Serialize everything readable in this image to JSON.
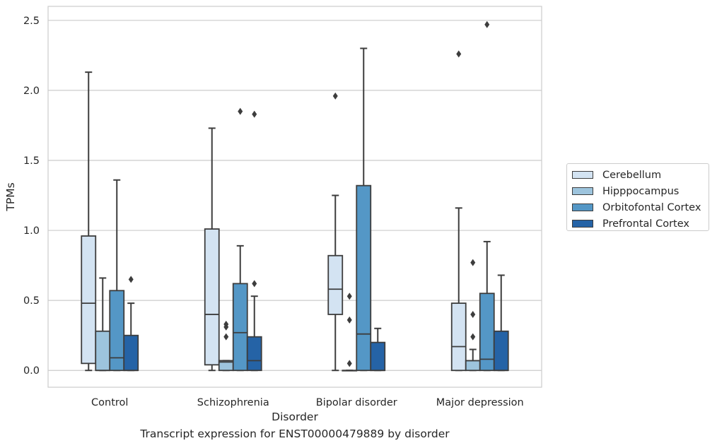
{
  "footer_text": "Transcript expression for ENST00000479889 by disorder",
  "chart_data": {
    "type": "box",
    "title": "",
    "xlabel": "Disorder",
    "ylabel": "TPMs",
    "categories": [
      "Control",
      "Schizophrenia",
      "Bipolar disorder",
      "Major depression"
    ],
    "ylim": [
      -0.12,
      2.6
    ],
    "yticks": [
      0.0,
      0.5,
      1.0,
      1.5,
      2.0,
      2.5
    ],
    "ytick_labels": [
      "0.0",
      "0.5",
      "1.0",
      "1.5",
      "2.0",
      "2.5"
    ],
    "grid": true,
    "legend_position": "right",
    "series": [
      {
        "name": "Cerebellum",
        "color": "#d3e3f2",
        "boxes": [
          {
            "min": 0.0,
            "q1": 0.05,
            "median": 0.48,
            "q3": 0.96,
            "max": 2.13,
            "outliers": []
          },
          {
            "min": 0.0,
            "q1": 0.04,
            "median": 0.4,
            "q3": 1.01,
            "max": 1.73,
            "outliers": []
          },
          {
            "min": 0.0,
            "q1": 0.4,
            "median": 0.58,
            "q3": 0.82,
            "max": 1.25,
            "outliers": [
              1.96
            ]
          },
          {
            "min": 0.0,
            "q1": 0.0,
            "median": 0.17,
            "q3": 0.48,
            "max": 1.16,
            "outliers": [
              2.26
            ]
          }
        ]
      },
      {
        "name": "Hipppocampus",
        "color": "#9dc4dd",
        "boxes": [
          {
            "min": 0.0,
            "q1": 0.0,
            "median": 0.0,
            "q3": 0.28,
            "max": 0.66,
            "outliers": []
          },
          {
            "min": 0.0,
            "q1": 0.0,
            "median": 0.06,
            "q3": 0.07,
            "max": 0.07,
            "outliers": [
              0.24,
              0.31,
              0.33
            ]
          },
          {
            "min": 0.0,
            "q1": 0.0,
            "median": 0.0,
            "q3": 0.0,
            "max": 0.0,
            "outliers": [
              0.05,
              0.36,
              0.53
            ]
          },
          {
            "min": 0.0,
            "q1": 0.0,
            "median": 0.07,
            "q3": 0.07,
            "max": 0.15,
            "outliers": [
              0.24,
              0.4,
              0.77
            ]
          }
        ]
      },
      {
        "name": "Orbitofontal Cortex",
        "color": "#5497c6",
        "boxes": [
          {
            "min": 0.0,
            "q1": 0.0,
            "median": 0.09,
            "q3": 0.57,
            "max": 1.36,
            "outliers": []
          },
          {
            "min": 0.0,
            "q1": 0.0,
            "median": 0.27,
            "q3": 0.62,
            "max": 0.89,
            "outliers": [
              1.85
            ]
          },
          {
            "min": 0.0,
            "q1": 0.0,
            "median": 0.26,
            "q3": 1.32,
            "max": 2.3,
            "outliers": []
          },
          {
            "min": 0.0,
            "q1": 0.0,
            "median": 0.08,
            "q3": 0.55,
            "max": 0.92,
            "outliers": [
              2.47
            ]
          }
        ]
      },
      {
        "name": "Prefrontal Cortex",
        "color": "#2563a6",
        "boxes": [
          {
            "min": 0.0,
            "q1": 0.0,
            "median": 0.0,
            "q3": 0.25,
            "max": 0.48,
            "outliers": [
              0.65
            ]
          },
          {
            "min": 0.0,
            "q1": 0.0,
            "median": 0.07,
            "q3": 0.24,
            "max": 0.53,
            "outliers": [
              0.62,
              1.83
            ]
          },
          {
            "min": 0.0,
            "q1": 0.0,
            "median": 0.0,
            "q3": 0.2,
            "max": 0.3,
            "outliers": []
          },
          {
            "min": 0.0,
            "q1": 0.0,
            "median": 0.0,
            "q3": 0.28,
            "max": 0.68,
            "outliers": []
          }
        ]
      }
    ]
  }
}
